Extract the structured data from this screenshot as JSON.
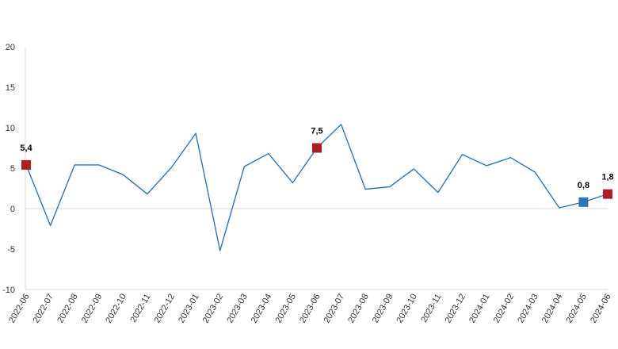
{
  "chart_data": {
    "type": "line",
    "title": "",
    "xlabel": "",
    "ylabel": "",
    "ylim": [
      -10,
      20
    ],
    "yticks": [
      -10,
      -5,
      0,
      5,
      10,
      15,
      20
    ],
    "grid": false,
    "zero_line": true,
    "categories": [
      "2022-06",
      "2022-07",
      "2022-08",
      "2022-09",
      "2022-10",
      "2022-11",
      "2022-12",
      "2023-01",
      "2023-02",
      "2023-03",
      "2023-04",
      "2023-05",
      "2023-06",
      "2023-07",
      "2023-08",
      "2023-09",
      "2023-10",
      "2023-11",
      "2023-12",
      "2024-01",
      "2024-02",
      "2024-03",
      "2024-04",
      "2024-05",
      "2024-06"
    ],
    "series": [
      {
        "values": [
          5.4,
          -2.1,
          5.4,
          5.4,
          4.2,
          1.8,
          5.1,
          9.3,
          -5.2,
          5.2,
          6.8,
          3.2,
          7.5,
          10.4,
          2.4,
          2.7,
          4.9,
          2.0,
          6.7,
          5.3,
          6.3,
          4.5,
          0.1,
          0.8,
          1.8
        ],
        "color": "#2e75b6"
      }
    ],
    "markers": [
      {
        "category": "2022-06",
        "value": 5.4,
        "label": "5,4",
        "color": "#b01e23"
      },
      {
        "category": "2023-06",
        "value": 7.5,
        "label": "7,5",
        "color": "#b01e23"
      },
      {
        "category": "2024-05",
        "value": 0.8,
        "label": "0,8",
        "color": "#2e75b6"
      },
      {
        "category": "2024-06",
        "value": 1.8,
        "label": "1,8",
        "color": "#b01e23"
      }
    ],
    "tick_label_color": "#333333",
    "axis_color": "#d9d9d9"
  }
}
